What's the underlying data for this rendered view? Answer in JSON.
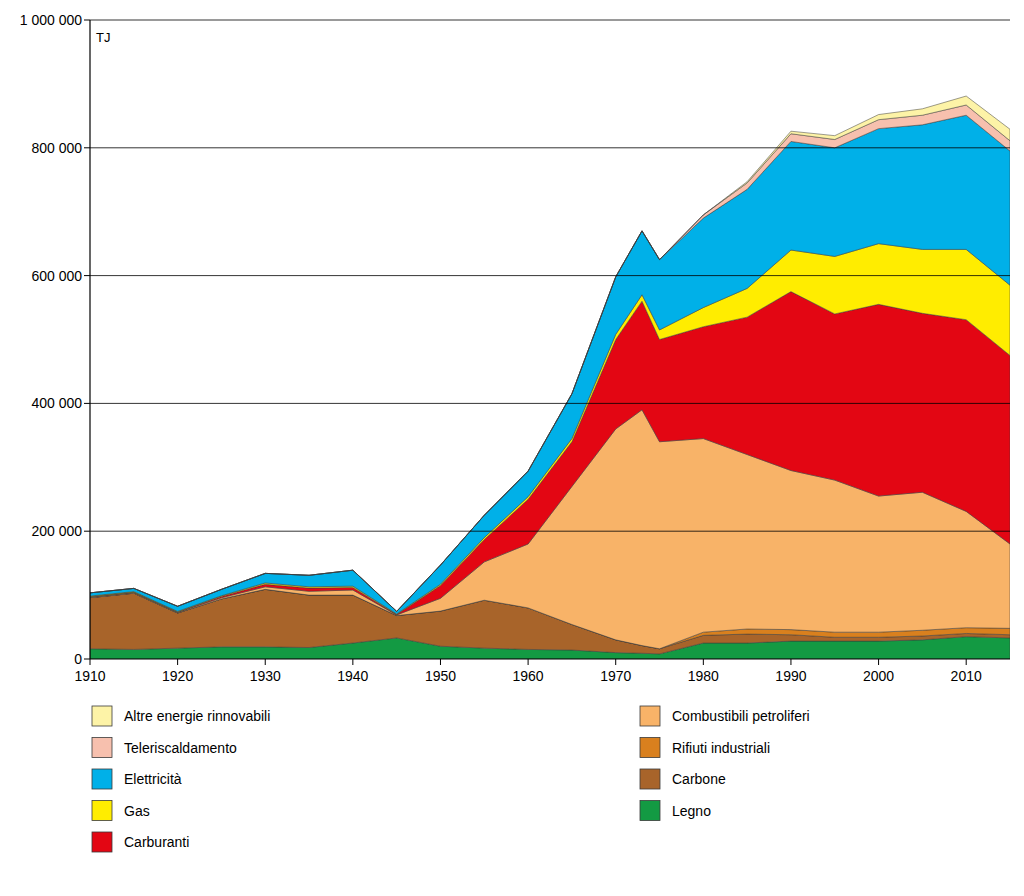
{
  "chart_data": {
    "type": "area",
    "stacked": true,
    "grid": true,
    "legend": "bottom",
    "y_label": "TJ",
    "x": [
      1910,
      1915,
      1920,
      1925,
      1930,
      1935,
      1940,
      1945,
      1950,
      1955,
      1960,
      1965,
      1970,
      1973,
      1975,
      1980,
      1985,
      1990,
      1995,
      2000,
      2005,
      2010,
      2015
    ],
    "xlim": [
      1910,
      2015
    ],
    "xticks": [
      1910,
      1920,
      1930,
      1940,
      1950,
      1960,
      1970,
      1980,
      1990,
      2000,
      2010
    ],
    "ylim": [
      0,
      1000000
    ],
    "yticks": [
      0,
      {
        "value": 200000,
        "label": "200 000"
      },
      {
        "value": 400000,
        "label": "400 000"
      },
      {
        "value": 600000,
        "label": "600 000"
      },
      {
        "value": 800000,
        "label": "800 000"
      },
      {
        "value": 1000000,
        "label": "1 000 000"
      }
    ],
    "series": [
      {
        "name": "Legno",
        "color": "#139a43",
        "values": [
          16000,
          15000,
          17000,
          19000,
          19000,
          18000,
          25000,
          33000,
          20000,
          17000,
          15000,
          14000,
          10000,
          9000,
          8000,
          25000,
          25000,
          28000,
          28000,
          28000,
          30000,
          35000,
          33000
        ]
      },
      {
        "name": "Carbone",
        "color": "#a8642a",
        "values": [
          80000,
          88000,
          55000,
          75000,
          90000,
          82000,
          75000,
          35000,
          55000,
          75000,
          65000,
          40000,
          20000,
          12000,
          8000,
          12000,
          14000,
          10000,
          6000,
          6000,
          6000,
          5000,
          5000
        ]
      },
      {
        "name": "Rifiuti industriali",
        "color": "#d9801e",
        "values": [
          0,
          0,
          0,
          0,
          0,
          0,
          0,
          0,
          0,
          0,
          0,
          0,
          0,
          0,
          0,
          5000,
          8000,
          8000,
          8000,
          8000,
          9000,
          9000,
          10000
        ]
      },
      {
        "name": "Combustibili petroliferi",
        "color": "#f8b368",
        "values": [
          1000,
          1000,
          1000,
          2000,
          4000,
          6000,
          8000,
          1000,
          20000,
          60000,
          100000,
          216000,
          330000,
          369000,
          324000,
          303000,
          273000,
          249000,
          238000,
          213000,
          216000,
          182000,
          132000
        ]
      },
      {
        "name": "Carburanti",
        "color": "#e30613",
        "values": [
          500,
          500,
          500,
          2000,
          4000,
          5000,
          4000,
          500,
          20000,
          35000,
          70000,
          70000,
          140000,
          170000,
          160000,
          175000,
          215000,
          280000,
          260000,
          300000,
          280000,
          300000,
          295000
        ]
      },
      {
        "name": "Gas",
        "color": "#ffed00",
        "values": [
          1000,
          1000,
          1000,
          1000,
          2000,
          2000,
          2000,
          1000,
          2000,
          3000,
          4000,
          5000,
          8000,
          10000,
          15000,
          30000,
          45000,
          65000,
          90000,
          95000,
          100000,
          110000,
          110000
        ]
      },
      {
        "name": "Elettricità",
        "color": "#00b0e8",
        "values": [
          5000,
          5000,
          8000,
          10000,
          15000,
          18000,
          25000,
          4000,
          30000,
          35000,
          40000,
          70000,
          90000,
          100000,
          110000,
          140000,
          155000,
          170000,
          170000,
          180000,
          195000,
          210000,
          210000
        ]
      },
      {
        "name": "Teleriscaldamento",
        "color": "#f7c0ae",
        "values": [
          0,
          0,
          0,
          0,
          0,
          0,
          0,
          0,
          0,
          0,
          0,
          0,
          0,
          0,
          0,
          5000,
          10000,
          12000,
          13000,
          14000,
          15000,
          16000,
          16000
        ]
      },
      {
        "name": "Altre energie rinnovabili",
        "color": "#fdf3a7",
        "values": [
          0,
          0,
          0,
          0,
          0,
          0,
          0,
          0,
          0,
          0,
          0,
          0,
          0,
          0,
          0,
          0,
          2000,
          4000,
          6000,
          8000,
          10000,
          14000,
          18000
        ]
      }
    ]
  }
}
